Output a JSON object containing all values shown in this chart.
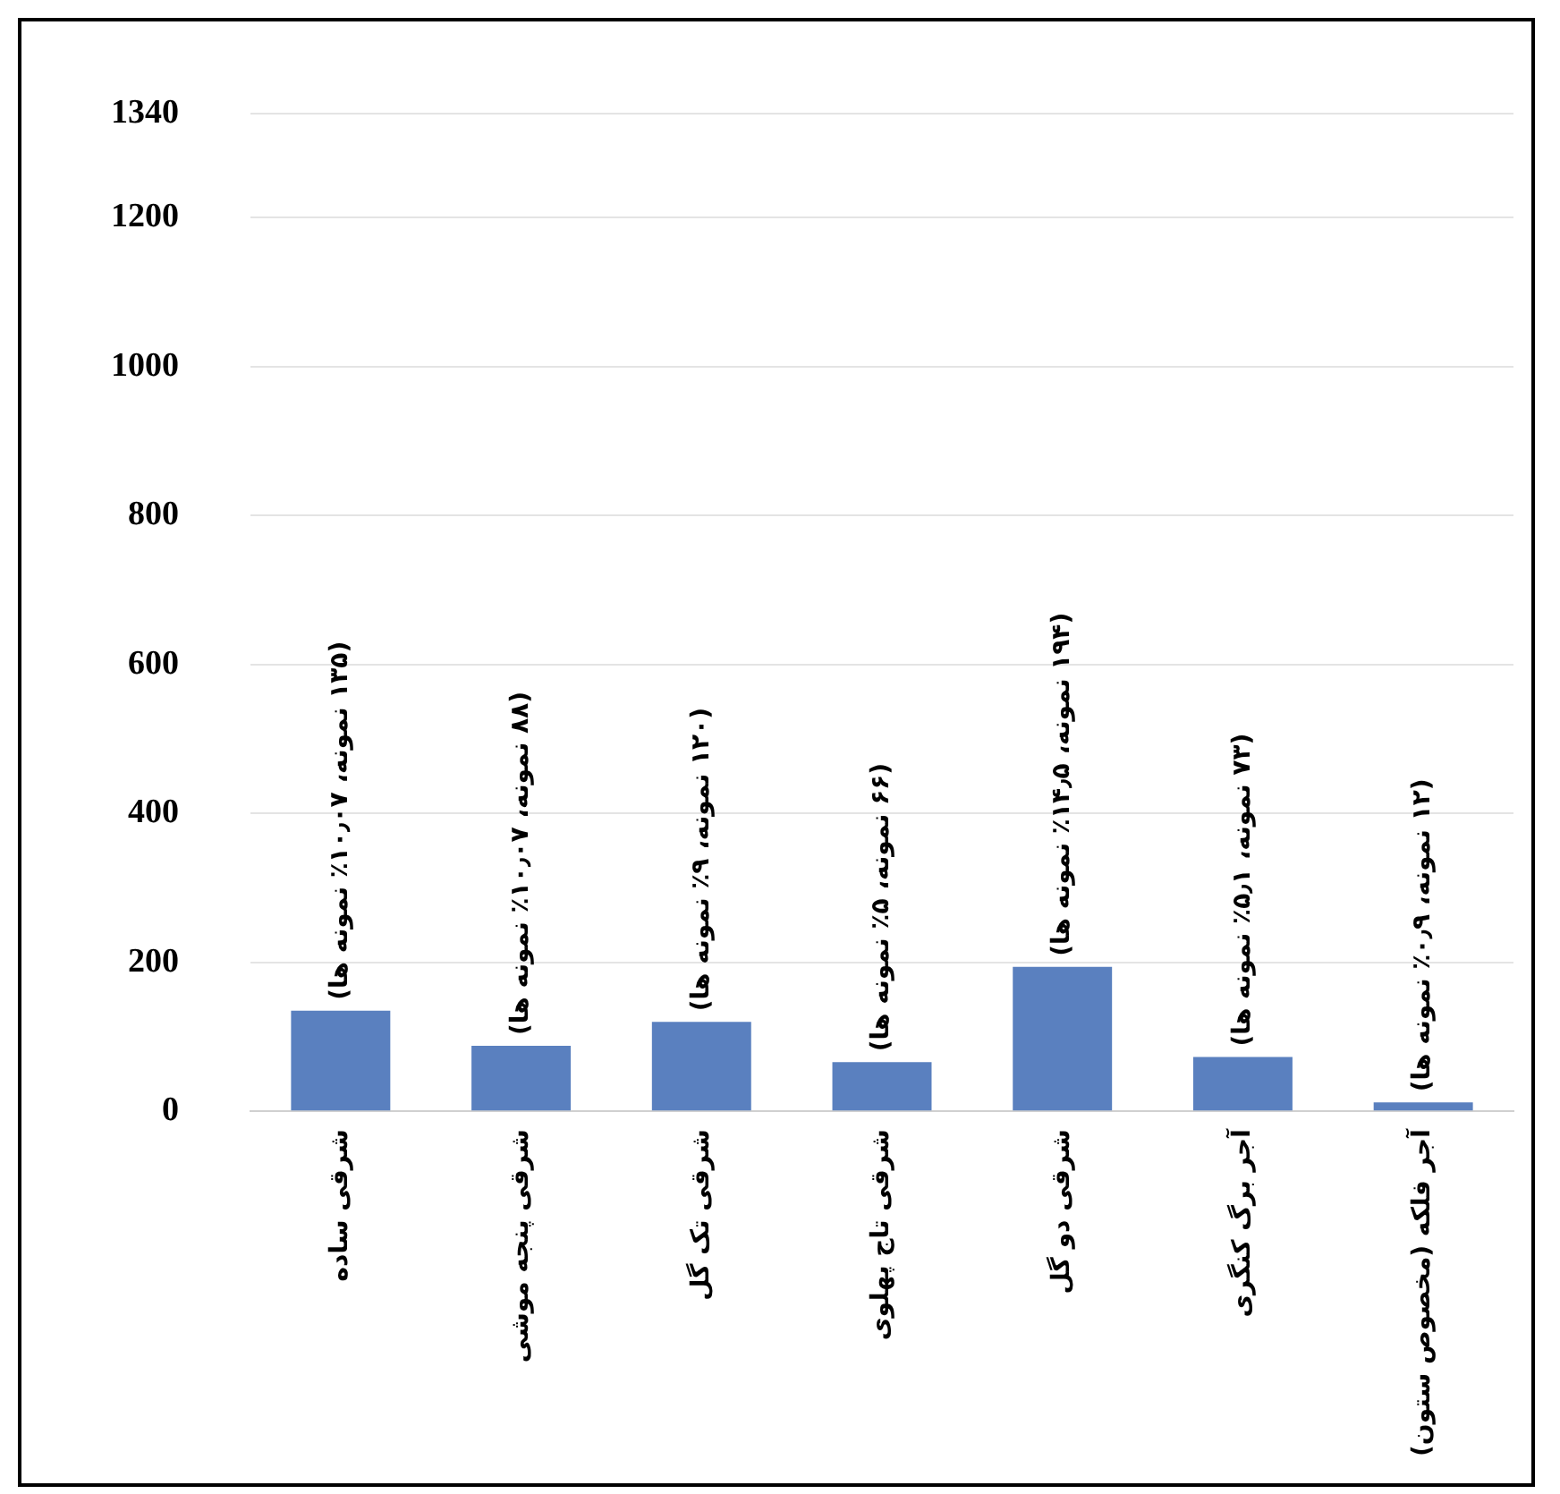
{
  "chart_data": {
    "type": "bar",
    "categories": [
      "شرقی ساده",
      "شرقی پنجه موشی",
      "شرقی تک گل",
      "شرقی تاج پهلوی",
      "شرقی دو گل",
      "آجر برگ کنگری",
      "آجر فلکه (مخصوص ستون)"
    ],
    "values": [
      135,
      88,
      120,
      66,
      194,
      73,
      12
    ],
    "value_labels": [
      "(۱۳۵ نمونه، ۱۰٫۰۷٪ نمونه ها)",
      "(۸۸ نمونه، ۱۰٫۰۷٪ نمونه ها)",
      "(۱۲۰ نمونه، ۹٪ نمونه ها)",
      "(۶۶ نمونه، ۵٪ نمونه ها)",
      "(۱۹۴ نمونه، ۱۴٫۵٪ نمونه ها)",
      "(۷۳ نمونه، ۵٫۱٪ نمونه ها)",
      "(۱۲ نمونه، ۰٫۹٪ نمونه ها)"
    ],
    "color": "#5a80bf",
    "ylim": [
      0,
      1340
    ],
    "yticks": [
      0,
      200,
      400,
      600,
      800,
      1000,
      1200,
      1340
    ],
    "grid": "y",
    "legend": false
  }
}
